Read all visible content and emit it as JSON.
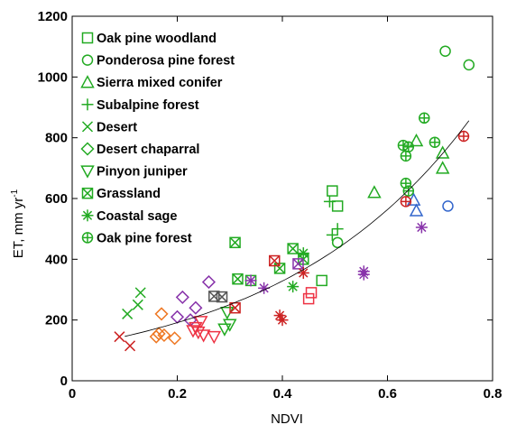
{
  "chart_data": {
    "type": "scatter",
    "title": "",
    "xlabel": "NDVI",
    "ylabel_main": "ET, mm yr",
    "ylabel_sup": "-1",
    "xlim": [
      0,
      0.8
    ],
    "ylim": [
      0,
      1200
    ],
    "xticks": [
      0,
      0.2,
      0.4,
      0.6,
      0.8
    ],
    "xtick_labels": [
      "0",
      "0.2",
      "0.4",
      "0.6",
      "0.8"
    ],
    "yticks": [
      0,
      200,
      400,
      600,
      800,
      1000,
      1200
    ],
    "ytick_labels": [
      "0",
      "200",
      "400",
      "600",
      "800",
      "1000",
      "1200"
    ],
    "grid": false,
    "legend_position": "top-left",
    "legend_marker_color": "#22aa22",
    "trend": {
      "type": "exponential",
      "a": 111.5,
      "b": 2.7
    },
    "legend": [
      {
        "name": "Oak pine woodland",
        "marker": "square"
      },
      {
        "name": "Ponderosa pine forest",
        "marker": "circle"
      },
      {
        "name": "Sierra mixed conifer",
        "marker": "triangle-up"
      },
      {
        "name": "Subalpine forest",
        "marker": "plus"
      },
      {
        "name": "Desert",
        "marker": "x"
      },
      {
        "name": "Desert chaparral",
        "marker": "diamond"
      },
      {
        "name": "Pinyon juniper",
        "marker": "triangle-down"
      },
      {
        "name": "Grassland",
        "marker": "square-x"
      },
      {
        "name": "Coastal sage",
        "marker": "star"
      },
      {
        "name": "Oak pine forest",
        "marker": "circle-plus"
      }
    ],
    "points": [
      {
        "marker": "square",
        "color": "#22aa22",
        "x": 0.495,
        "y": 625
      },
      {
        "marker": "square",
        "color": "#22aa22",
        "x": 0.505,
        "y": 575
      },
      {
        "marker": "square",
        "color": "#22aa22",
        "x": 0.475,
        "y": 330
      },
      {
        "marker": "square",
        "color": "#22aa22",
        "x": 0.34,
        "y": 330
      },
      {
        "marker": "circle",
        "color": "#22aa22",
        "x": 0.71,
        "y": 1085
      },
      {
        "marker": "circle",
        "color": "#22aa22",
        "x": 0.755,
        "y": 1040
      },
      {
        "marker": "circle",
        "color": "#22aa22",
        "x": 0.505,
        "y": 455
      },
      {
        "marker": "circle",
        "color": "#3366cc",
        "x": 0.715,
        "y": 575
      },
      {
        "marker": "circle-plus",
        "color": "#cc2222",
        "x": 0.745,
        "y": 805
      },
      {
        "marker": "triangle-up",
        "color": "#22aa22",
        "x": 0.575,
        "y": 620
      },
      {
        "marker": "triangle-up",
        "color": "#22aa22",
        "x": 0.655,
        "y": 790
      },
      {
        "marker": "triangle-up",
        "color": "#22aa22",
        "x": 0.705,
        "y": 750
      },
      {
        "marker": "triangle-up",
        "color": "#22aa22",
        "x": 0.705,
        "y": 700
      },
      {
        "marker": "triangle-up",
        "color": "#3366cc",
        "x": 0.65,
        "y": 595
      },
      {
        "marker": "triangle-up",
        "color": "#3366cc",
        "x": 0.655,
        "y": 560
      },
      {
        "marker": "plus",
        "color": "#22aa22",
        "x": 0.49,
        "y": 590
      },
      {
        "marker": "plus",
        "color": "#22aa22",
        "x": 0.505,
        "y": 500
      },
      {
        "marker": "plus",
        "color": "#22aa22",
        "x": 0.495,
        "y": 480
      },
      {
        "marker": "x",
        "color": "#cc2222",
        "x": 0.09,
        "y": 145
      },
      {
        "marker": "x",
        "color": "#cc2222",
        "x": 0.11,
        "y": 115
      },
      {
        "marker": "x",
        "color": "#22aa22",
        "x": 0.105,
        "y": 220
      },
      {
        "marker": "x",
        "color": "#22aa22",
        "x": 0.125,
        "y": 250
      },
      {
        "marker": "x",
        "color": "#22aa22",
        "x": 0.13,
        "y": 290
      },
      {
        "marker": "diamond",
        "color": "#ee7722",
        "x": 0.17,
        "y": 220
      },
      {
        "marker": "diamond",
        "color": "#ee7722",
        "x": 0.165,
        "y": 155
      },
      {
        "marker": "diamond",
        "color": "#ee7722",
        "x": 0.175,
        "y": 150
      },
      {
        "marker": "diamond",
        "color": "#ee7722",
        "x": 0.16,
        "y": 145
      },
      {
        "marker": "diamond",
        "color": "#ee7722",
        "x": 0.195,
        "y": 140
      },
      {
        "marker": "diamond",
        "color": "#8833aa",
        "x": 0.21,
        "y": 275
      },
      {
        "marker": "diamond",
        "color": "#8833aa",
        "x": 0.26,
        "y": 325
      },
      {
        "marker": "diamond",
        "color": "#8833aa",
        "x": 0.2,
        "y": 210
      },
      {
        "marker": "diamond",
        "color": "#8833aa",
        "x": 0.235,
        "y": 240
      },
      {
        "marker": "diamond",
        "color": "#8833aa",
        "x": 0.225,
        "y": 200
      },
      {
        "marker": "triangle-down",
        "color": "#ee3344",
        "x": 0.235,
        "y": 175
      },
      {
        "marker": "triangle-down",
        "color": "#ee3344",
        "x": 0.24,
        "y": 160
      },
      {
        "marker": "triangle-down",
        "color": "#ee3344",
        "x": 0.245,
        "y": 195
      },
      {
        "marker": "triangle-down",
        "color": "#ee3344",
        "x": 0.25,
        "y": 150
      },
      {
        "marker": "triangle-down",
        "color": "#ee3344",
        "x": 0.27,
        "y": 145
      },
      {
        "marker": "triangle-down",
        "color": "#ee3344",
        "x": 0.23,
        "y": 165
      },
      {
        "marker": "triangle-down",
        "color": "#22aa22",
        "x": 0.295,
        "y": 225
      },
      {
        "marker": "triangle-down",
        "color": "#22aa22",
        "x": 0.3,
        "y": 185
      },
      {
        "marker": "triangle-down",
        "color": "#22aa22",
        "x": 0.29,
        "y": 170
      },
      {
        "marker": "square-x",
        "color": "#22aa22",
        "x": 0.31,
        "y": 455
      },
      {
        "marker": "square-x",
        "color": "#22aa22",
        "x": 0.42,
        "y": 435
      },
      {
        "marker": "square-x",
        "color": "#22aa22",
        "x": 0.395,
        "y": 370
      },
      {
        "marker": "square-x",
        "color": "#22aa22",
        "x": 0.44,
        "y": 400
      },
      {
        "marker": "square-x",
        "color": "#22aa22",
        "x": 0.315,
        "y": 335
      },
      {
        "marker": "square-x",
        "color": "#cc2222",
        "x": 0.385,
        "y": 395
      },
      {
        "marker": "square-x",
        "color": "#cc2222",
        "x": 0.31,
        "y": 240
      },
      {
        "marker": "square-x",
        "color": "#555555",
        "x": 0.27,
        "y": 278
      },
      {
        "marker": "square-x",
        "color": "#555555",
        "x": 0.285,
        "y": 276
      },
      {
        "marker": "square-x",
        "color": "#8833aa",
        "x": 0.43,
        "y": 385
      },
      {
        "marker": "square",
        "color": "#ee3344",
        "x": 0.455,
        "y": 290
      },
      {
        "marker": "square",
        "color": "#ee3344",
        "x": 0.45,
        "y": 270
      },
      {
        "marker": "star",
        "color": "#22aa22",
        "x": 0.42,
        "y": 310
      },
      {
        "marker": "star",
        "color": "#22aa22",
        "x": 0.44,
        "y": 420
      },
      {
        "marker": "star",
        "color": "#cc2222",
        "x": 0.395,
        "y": 215
      },
      {
        "marker": "star",
        "color": "#cc2222",
        "x": 0.4,
        "y": 200
      },
      {
        "marker": "star",
        "color": "#cc2222",
        "x": 0.44,
        "y": 355
      },
      {
        "marker": "star",
        "color": "#8833aa",
        "x": 0.34,
        "y": 330
      },
      {
        "marker": "star",
        "color": "#8833aa",
        "x": 0.365,
        "y": 305
      },
      {
        "marker": "star",
        "color": "#8833aa",
        "x": 0.555,
        "y": 360
      },
      {
        "marker": "star",
        "color": "#8833aa",
        "x": 0.555,
        "y": 350
      },
      {
        "marker": "star",
        "color": "#8833aa",
        "x": 0.665,
        "y": 505
      },
      {
        "marker": "circle-plus",
        "color": "#22aa22",
        "x": 0.67,
        "y": 865
      },
      {
        "marker": "circle-plus",
        "color": "#22aa22",
        "x": 0.69,
        "y": 785
      },
      {
        "marker": "circle-plus",
        "color": "#22aa22",
        "x": 0.63,
        "y": 775
      },
      {
        "marker": "circle-plus",
        "color": "#22aa22",
        "x": 0.64,
        "y": 770
      },
      {
        "marker": "circle-plus",
        "color": "#22aa22",
        "x": 0.635,
        "y": 740
      },
      {
        "marker": "circle-plus",
        "color": "#22aa22",
        "x": 0.635,
        "y": 650
      },
      {
        "marker": "circle-plus",
        "color": "#22aa22",
        "x": 0.64,
        "y": 625
      },
      {
        "marker": "circle-plus",
        "color": "#cc2222",
        "x": 0.635,
        "y": 590
      }
    ]
  }
}
